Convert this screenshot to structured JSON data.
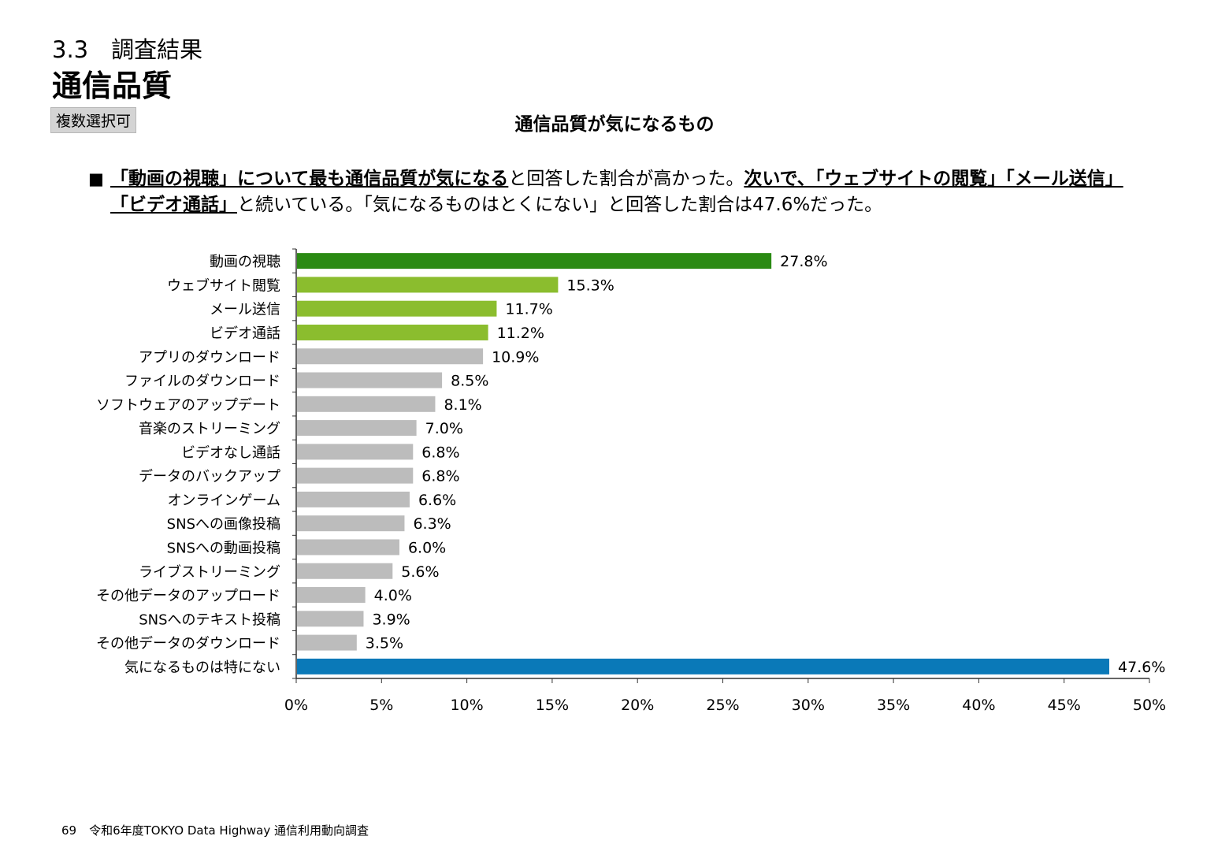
{
  "header": {
    "section": "3.3　調査結果",
    "title": "通信品質",
    "badge": "複数選択可"
  },
  "summary": {
    "bullet": "■",
    "line1": [
      {
        "text": "「動画の視聴」について最も通信品質が気になる",
        "em": true
      },
      {
        "text": "と回答した割合が高かった。",
        "em": false
      },
      {
        "text": "次いで、「ウェブサイトの閲覧」「メール送信」",
        "em": true
      }
    ],
    "line2": [
      {
        "text": "「ビデオ通話」",
        "em": true
      },
      {
        "text": "と続いている。「気になるものはとくにない」と回答した割合は47.6%だった。",
        "em": false
      }
    ]
  },
  "chart_data": {
    "type": "bar",
    "orientation": "horizontal",
    "title": "通信品質が気になるもの",
    "categories": [
      "動画の視聴",
      "ウェブサイト閲覧",
      "メール送信",
      "ビデオ通話",
      "アプリのダウンロード",
      "ファイルのダウンロード",
      "ソフトウェアのアップデート",
      "音楽のストリーミング",
      "ビデオなし通話",
      "データのバックアップ",
      "オンラインゲーム",
      "SNSへの画像投稿",
      "SNSへの動画投稿",
      "ライブストリーミング",
      "その他データのアップロード",
      "SNSへのテキスト投稿",
      "その他データのダウンロード",
      "気になるものは特にない"
    ],
    "values": [
      27.8,
      15.3,
      11.7,
      11.2,
      10.9,
      8.5,
      8.1,
      7.0,
      6.8,
      6.8,
      6.6,
      6.3,
      6.0,
      5.6,
      4.0,
      3.9,
      3.5,
      47.6
    ],
    "value_labels": [
      "27.8%",
      "15.3%",
      "11.7%",
      "11.2%",
      "10.9%",
      "8.5%",
      "8.1%",
      "7.0%",
      "6.8%",
      "6.8%",
      "6.6%",
      "6.3%",
      "6.0%",
      "5.6%",
      "4.0%",
      "3.9%",
      "3.5%",
      "47.6%"
    ],
    "bar_colors": [
      "#2b8a13",
      "#8bbd2e",
      "#8bbd2e",
      "#8bbd2e",
      "#bcbcbc",
      "#bcbcbc",
      "#bcbcbc",
      "#bcbcbc",
      "#bcbcbc",
      "#bcbcbc",
      "#bcbcbc",
      "#bcbcbc",
      "#bcbcbc",
      "#bcbcbc",
      "#bcbcbc",
      "#bcbcbc",
      "#bcbcbc",
      "#0a79b8"
    ],
    "xlim": [
      0,
      50
    ],
    "xticks": [
      0,
      5,
      10,
      15,
      20,
      25,
      30,
      35,
      40,
      45,
      50
    ],
    "xtick_labels": [
      "0%",
      "5%",
      "10%",
      "15%",
      "20%",
      "25%",
      "30%",
      "35%",
      "40%",
      "45%",
      "50%"
    ],
    "grid": false,
    "legend": "none"
  },
  "footer": {
    "page": "69",
    "text": "令和6年度TOKYO Data Highway 通信利用動向調査"
  }
}
